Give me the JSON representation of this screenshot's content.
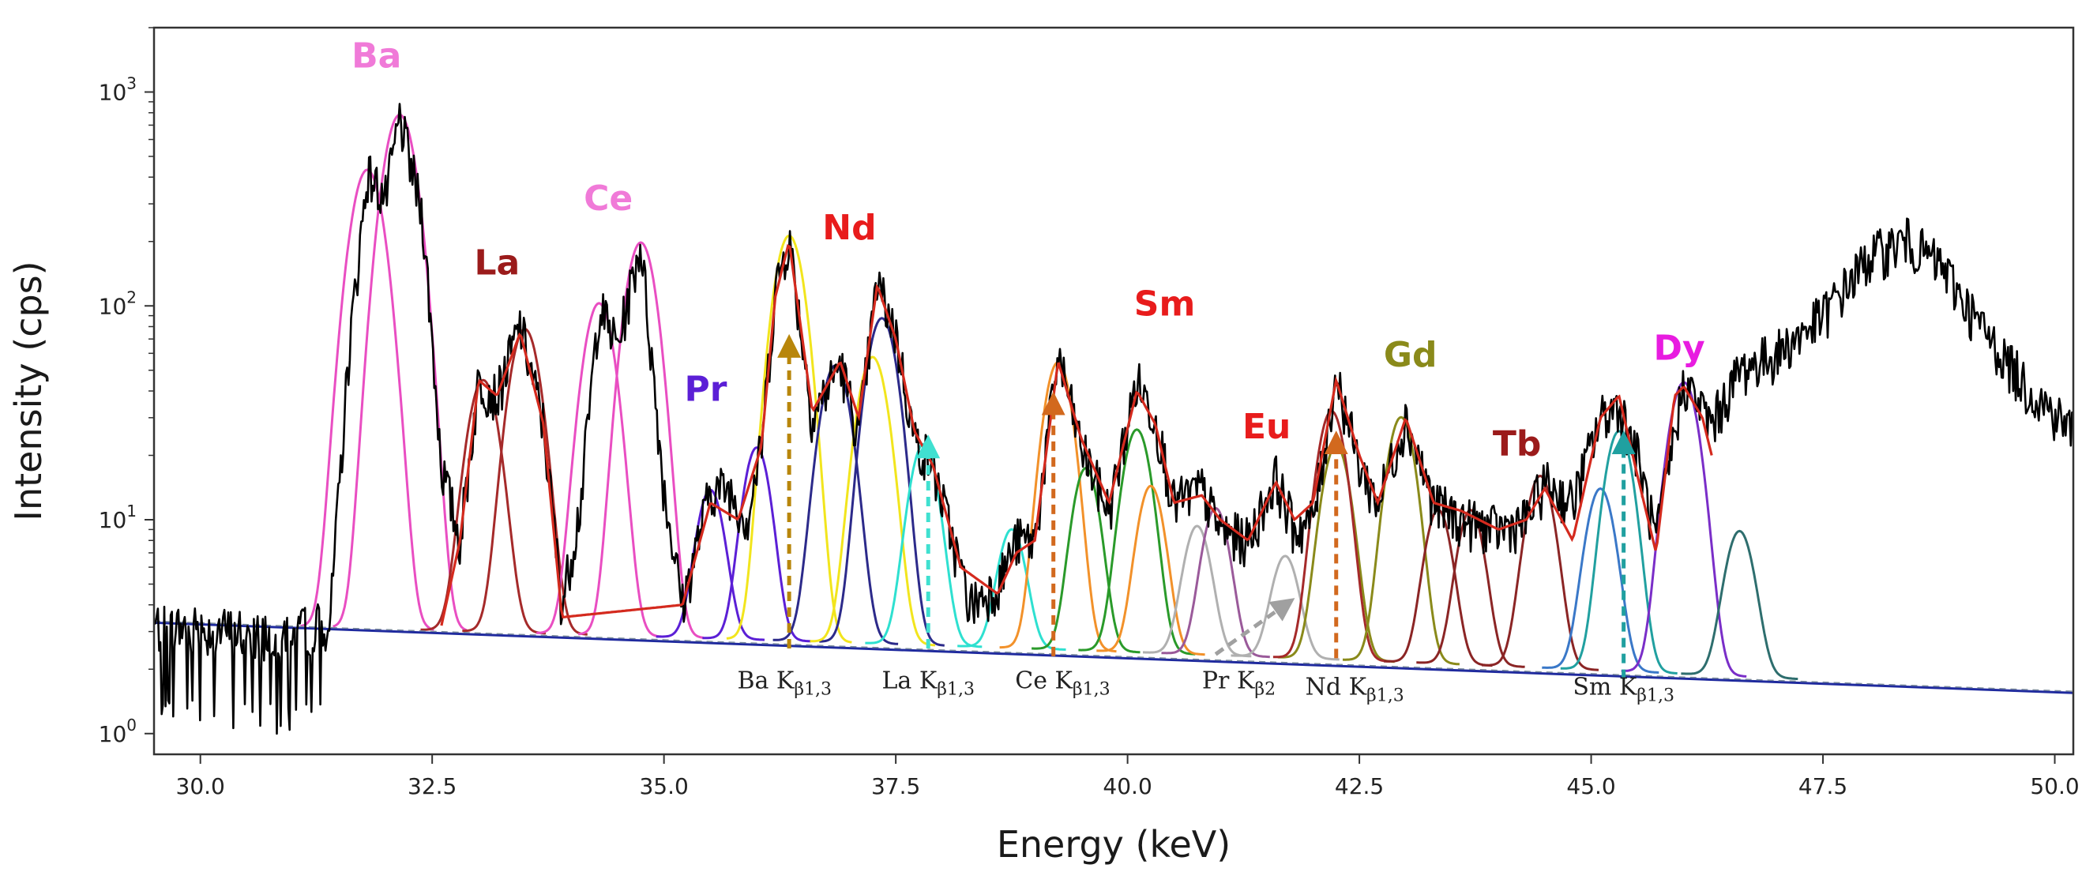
{
  "chart_data": {
    "type": "line",
    "title": "",
    "xlabel": "Energy (keV)",
    "ylabel": "Intensity (cps)",
    "xlim": [
      29.5,
      50.2
    ],
    "ylim": [
      0.8,
      2000
    ],
    "y_scale": "log",
    "grid": false,
    "x_ticks": [
      30.0,
      32.5,
      35.0,
      37.5,
      40.0,
      42.5,
      45.0,
      47.5,
      50.0
    ],
    "x_tick_labels": [
      "30.0",
      "32.5",
      "35.0",
      "37.5",
      "40.0",
      "42.5",
      "45.0",
      "47.5",
      "50.0"
    ],
    "y_ticks": [
      {
        "value": 1,
        "base": "10",
        "exp": "0"
      },
      {
        "value": 10,
        "base": "10",
        "exp": "1"
      },
      {
        "value": 100,
        "base": "10",
        "exp": "2"
      },
      {
        "value": 1000,
        "base": "10",
        "exp": "3"
      }
    ],
    "background": {
      "a": 3.3,
      "b": 1.55,
      "x0": 29.5,
      "x1": 50.2
    },
    "series": [
      {
        "type": "measured",
        "color": "#000000",
        "noise": true,
        "points": [
          [
            29.5,
            3.2
          ],
          [
            30.5,
            3.0
          ],
          [
            31.0,
            3.0
          ],
          [
            31.4,
            3.4
          ],
          [
            31.6,
            60
          ],
          [
            31.8,
            420
          ],
          [
            32.0,
            320
          ],
          [
            32.15,
            760
          ],
          [
            32.4,
            260
          ],
          [
            32.6,
            18
          ],
          [
            32.8,
            8
          ],
          [
            33.0,
            45
          ],
          [
            33.2,
            38
          ],
          [
            33.45,
            82
          ],
          [
            33.7,
            28
          ],
          [
            33.9,
            4
          ],
          [
            34.1,
            12
          ],
          [
            34.3,
            100
          ],
          [
            34.5,
            65
          ],
          [
            34.75,
            200
          ],
          [
            35.0,
            14
          ],
          [
            35.2,
            4
          ],
          [
            35.5,
            14
          ],
          [
            35.7,
            14
          ],
          [
            35.9,
            10
          ],
          [
            36.05,
            22
          ],
          [
            36.2,
            120
          ],
          [
            36.35,
            210
          ],
          [
            36.6,
            30
          ],
          [
            36.9,
            55
          ],
          [
            37.1,
            25
          ],
          [
            37.3,
            130
          ],
          [
            37.5,
            75
          ],
          [
            37.7,
            24
          ],
          [
            37.9,
            18
          ],
          [
            38.3,
            4
          ],
          [
            38.6,
            5
          ],
          [
            38.8,
            8
          ],
          [
            39.0,
            8
          ],
          [
            39.25,
            60
          ],
          [
            39.5,
            22
          ],
          [
            39.8,
            11
          ],
          [
            40.1,
            45
          ],
          [
            40.3,
            30
          ],
          [
            40.5,
            12
          ],
          [
            40.8,
            14
          ],
          [
            41.0,
            9
          ],
          [
            41.3,
            8
          ],
          [
            41.6,
            16
          ],
          [
            41.8,
            9
          ],
          [
            42.0,
            10
          ],
          [
            42.25,
            48
          ],
          [
            42.5,
            18
          ],
          [
            42.7,
            12
          ],
          [
            43.0,
            30
          ],
          [
            43.3,
            12
          ],
          [
            43.6,
            10
          ],
          [
            44.0,
            9
          ],
          [
            44.3,
            10
          ],
          [
            44.5,
            15
          ],
          [
            44.8,
            12
          ],
          [
            45.1,
            30
          ],
          [
            45.3,
            35
          ],
          [
            45.5,
            20
          ],
          [
            45.7,
            8
          ],
          [
            46.0,
            45
          ],
          [
            46.3,
            28
          ],
          [
            46.6,
            50
          ],
          [
            47.0,
            60
          ],
          [
            47.5,
            90
          ],
          [
            48.0,
            170
          ],
          [
            48.4,
            205
          ],
          [
            48.8,
            150
          ],
          [
            49.2,
            80
          ],
          [
            49.7,
            42
          ],
          [
            50.2,
            26
          ]
        ]
      },
      {
        "type": "fit-total",
        "color": "#d42a1e",
        "points": [
          [
            32.6,
            3.2
          ],
          [
            32.8,
            8
          ],
          [
            33.0,
            45
          ],
          [
            33.2,
            38
          ],
          [
            33.45,
            75
          ],
          [
            33.7,
            28
          ],
          [
            33.9,
            3.5
          ],
          [
            35.2,
            4
          ],
          [
            35.5,
            12
          ],
          [
            35.8,
            10
          ],
          [
            36.05,
            22
          ],
          [
            36.2,
            110
          ],
          [
            36.35,
            200
          ],
          [
            36.6,
            32
          ],
          [
            36.9,
            55
          ],
          [
            37.1,
            30
          ],
          [
            37.3,
            125
          ],
          [
            37.5,
            70
          ],
          [
            37.7,
            26
          ],
          [
            37.9,
            18
          ],
          [
            38.2,
            6
          ],
          [
            38.6,
            4.5
          ],
          [
            38.8,
            7
          ],
          [
            39.0,
            8
          ],
          [
            39.25,
            55
          ],
          [
            39.5,
            24
          ],
          [
            39.8,
            12
          ],
          [
            40.1,
            40
          ],
          [
            40.3,
            28
          ],
          [
            40.5,
            12
          ],
          [
            40.8,
            13
          ],
          [
            41.0,
            10
          ],
          [
            41.3,
            8
          ],
          [
            41.6,
            15
          ],
          [
            41.8,
            10
          ],
          [
            42.0,
            12
          ],
          [
            42.25,
            45
          ],
          [
            42.5,
            20
          ],
          [
            42.7,
            12
          ],
          [
            43.0,
            30
          ],
          [
            43.3,
            12
          ],
          [
            43.6,
            11
          ],
          [
            44.0,
            9
          ],
          [
            44.3,
            10
          ],
          [
            44.5,
            14
          ],
          [
            44.8,
            8
          ],
          [
            45.1,
            30
          ],
          [
            45.3,
            38
          ],
          [
            45.5,
            16
          ],
          [
            45.7,
            7
          ],
          [
            45.9,
            38
          ],
          [
            46.0,
            42
          ],
          [
            46.2,
            30
          ],
          [
            46.3,
            20
          ]
        ]
      }
    ],
    "peaks": [
      {
        "center": 31.8,
        "amp": 430,
        "sigma": 0.16,
        "color": "#e94ec2"
      },
      {
        "center": 32.15,
        "amp": 780,
        "sigma": 0.16,
        "color": "#e94ec2"
      },
      {
        "center": 33.05,
        "amp": 42,
        "sigma": 0.15,
        "color": "#a52a2a"
      },
      {
        "center": 33.5,
        "amp": 75,
        "sigma": 0.15,
        "color": "#a52a2a"
      },
      {
        "center": 34.3,
        "amp": 100,
        "sigma": 0.15,
        "color": "#e94ec2"
      },
      {
        "center": 34.75,
        "amp": 195,
        "sigma": 0.15,
        "color": "#e94ec2"
      },
      {
        "center": 35.5,
        "amp": 11,
        "sigma": 0.13,
        "color": "#5b1fd6"
      },
      {
        "center": 36.0,
        "amp": 19,
        "sigma": 0.13,
        "color": "#5b1fd6"
      },
      {
        "center": 36.35,
        "amp": 210,
        "sigma": 0.15,
        "color": "#f2e51d"
      },
      {
        "center": 36.85,
        "amp": 50,
        "sigma": 0.15,
        "color": "#2c2a8a"
      },
      {
        "center": 37.35,
        "amp": 85,
        "sigma": 0.15,
        "color": "#2c2a8a"
      },
      {
        "center": 37.25,
        "amp": 55,
        "sigma": 0.15,
        "color": "#f2e51d"
      },
      {
        "center": 37.8,
        "amp": 20,
        "sigma": 0.14,
        "color": "#2ee0d0"
      },
      {
        "center": 38.75,
        "amp": 6.5,
        "sigma": 0.13,
        "color": "#2ee0d0"
      },
      {
        "center": 39.25,
        "amp": 52,
        "sigma": 0.14,
        "color": "#f2912a"
      },
      {
        "center": 39.55,
        "amp": 15,
        "sigma": 0.13,
        "color": "#2a9a2a"
      },
      {
        "center": 40.1,
        "amp": 24,
        "sigma": 0.14,
        "color": "#2a9a2a"
      },
      {
        "center": 40.25,
        "amp": 12,
        "sigma": 0.13,
        "color": "#f2912a"
      },
      {
        "center": 40.75,
        "amp": 7,
        "sigma": 0.13,
        "color": "#b0b0b0"
      },
      {
        "center": 40.95,
        "amp": 9,
        "sigma": 0.13,
        "color": "#9a5a9a"
      },
      {
        "center": 41.7,
        "amp": 4.5,
        "sigma": 0.13,
        "color": "#b0b0b0"
      },
      {
        "center": 42.25,
        "amp": 20,
        "sigma": 0.14,
        "color": "#8a8a1a"
      },
      {
        "center": 42.2,
        "amp": 30,
        "sigma": 0.14,
        "color": "#a52a2a"
      },
      {
        "center": 42.95,
        "amp": 28,
        "sigma": 0.14,
        "color": "#8a8a1a"
      },
      {
        "center": 43.35,
        "amp": 9,
        "sigma": 0.13,
        "color": "#8b2525"
      },
      {
        "center": 43.7,
        "amp": 9,
        "sigma": 0.13,
        "color": "#8b2525"
      },
      {
        "center": 44.45,
        "amp": 14,
        "sigma": 0.14,
        "color": "#8b2525"
      },
      {
        "center": 45.1,
        "amp": 12,
        "sigma": 0.14,
        "color": "#3a78c8"
      },
      {
        "center": 45.3,
        "amp": 24,
        "sigma": 0.14,
        "color": "#21a0a0"
      },
      {
        "center": 46.0,
        "amp": 42,
        "sigma": 0.15,
        "color": "#7a2ec8"
      },
      {
        "center": 46.6,
        "amp": 7,
        "sigma": 0.14,
        "color": "#2e6e6e"
      }
    ],
    "annotations": [
      {
        "text": "Ba",
        "x": 31.9,
        "y": 1300,
        "color": "#f07ad8"
      },
      {
        "text": "La",
        "x": 33.2,
        "y": 140,
        "color": "#9b1b1b"
      },
      {
        "text": "Ce",
        "x": 34.4,
        "y": 280,
        "color": "#f07ad8"
      },
      {
        "text": "Pr",
        "x": 35.45,
        "y": 36,
        "color": "#5b1fd6"
      },
      {
        "text": "Nd",
        "x": 37.0,
        "y": 205,
        "color": "#e81c1c"
      },
      {
        "text": "Sm",
        "x": 40.4,
        "y": 90,
        "color": "#e81c1c"
      },
      {
        "text": "Eu",
        "x": 41.5,
        "y": 24,
        "color": "#e81c1c"
      },
      {
        "text": "Gd",
        "x": 43.05,
        "y": 52,
        "color": "#8a8a1a"
      },
      {
        "text": "Tb",
        "x": 44.2,
        "y": 20,
        "color": "#9b1b1b"
      },
      {
        "text": "Dy",
        "x": 45.95,
        "y": 56,
        "color": "#e81ce0"
      }
    ],
    "transitions": [
      {
        "label": "Ba K",
        "sub": "β1,3",
        "x": 36.35,
        "y_start": 2.5,
        "y_end": 65,
        "arrow_color": "#b8860b",
        "text_x": 36.3,
        "text_y": 1.63
      },
      {
        "label": "La K",
        "sub": "β1,3",
        "x": 37.85,
        "y_start": 2.5,
        "y_end": 22,
        "arrow_color": "#40e0d0",
        "text_x": 37.85,
        "text_y": 1.63
      },
      {
        "label": "Ce K",
        "sub": "β1,3",
        "x": 39.2,
        "y_start": 2.3,
        "y_end": 35,
        "arrow_color": "#d2691e",
        "text_x": 39.3,
        "text_y": 1.63
      },
      {
        "label": "Pr K",
        "sub": "β2",
        "x1": 40.95,
        "y1": 2.35,
        "x2": 41.7,
        "y2": 4.0,
        "arrow_color": "#a0a0a0",
        "text_x": 41.2,
        "text_y": 1.63
      },
      {
        "label": "Nd K",
        "sub": "β1,3",
        "x": 42.25,
        "y_start": 2.25,
        "y_end": 23,
        "arrow_color": "#d2691e",
        "text_x": 42.45,
        "text_y": 1.52
      },
      {
        "label": "Sm K",
        "sub": "β1,3",
        "x": 45.35,
        "y_start": 1.8,
        "y_end": 23,
        "arrow_color": "#20a0a0",
        "text_x": 45.35,
        "text_y": 1.52
      }
    ]
  }
}
